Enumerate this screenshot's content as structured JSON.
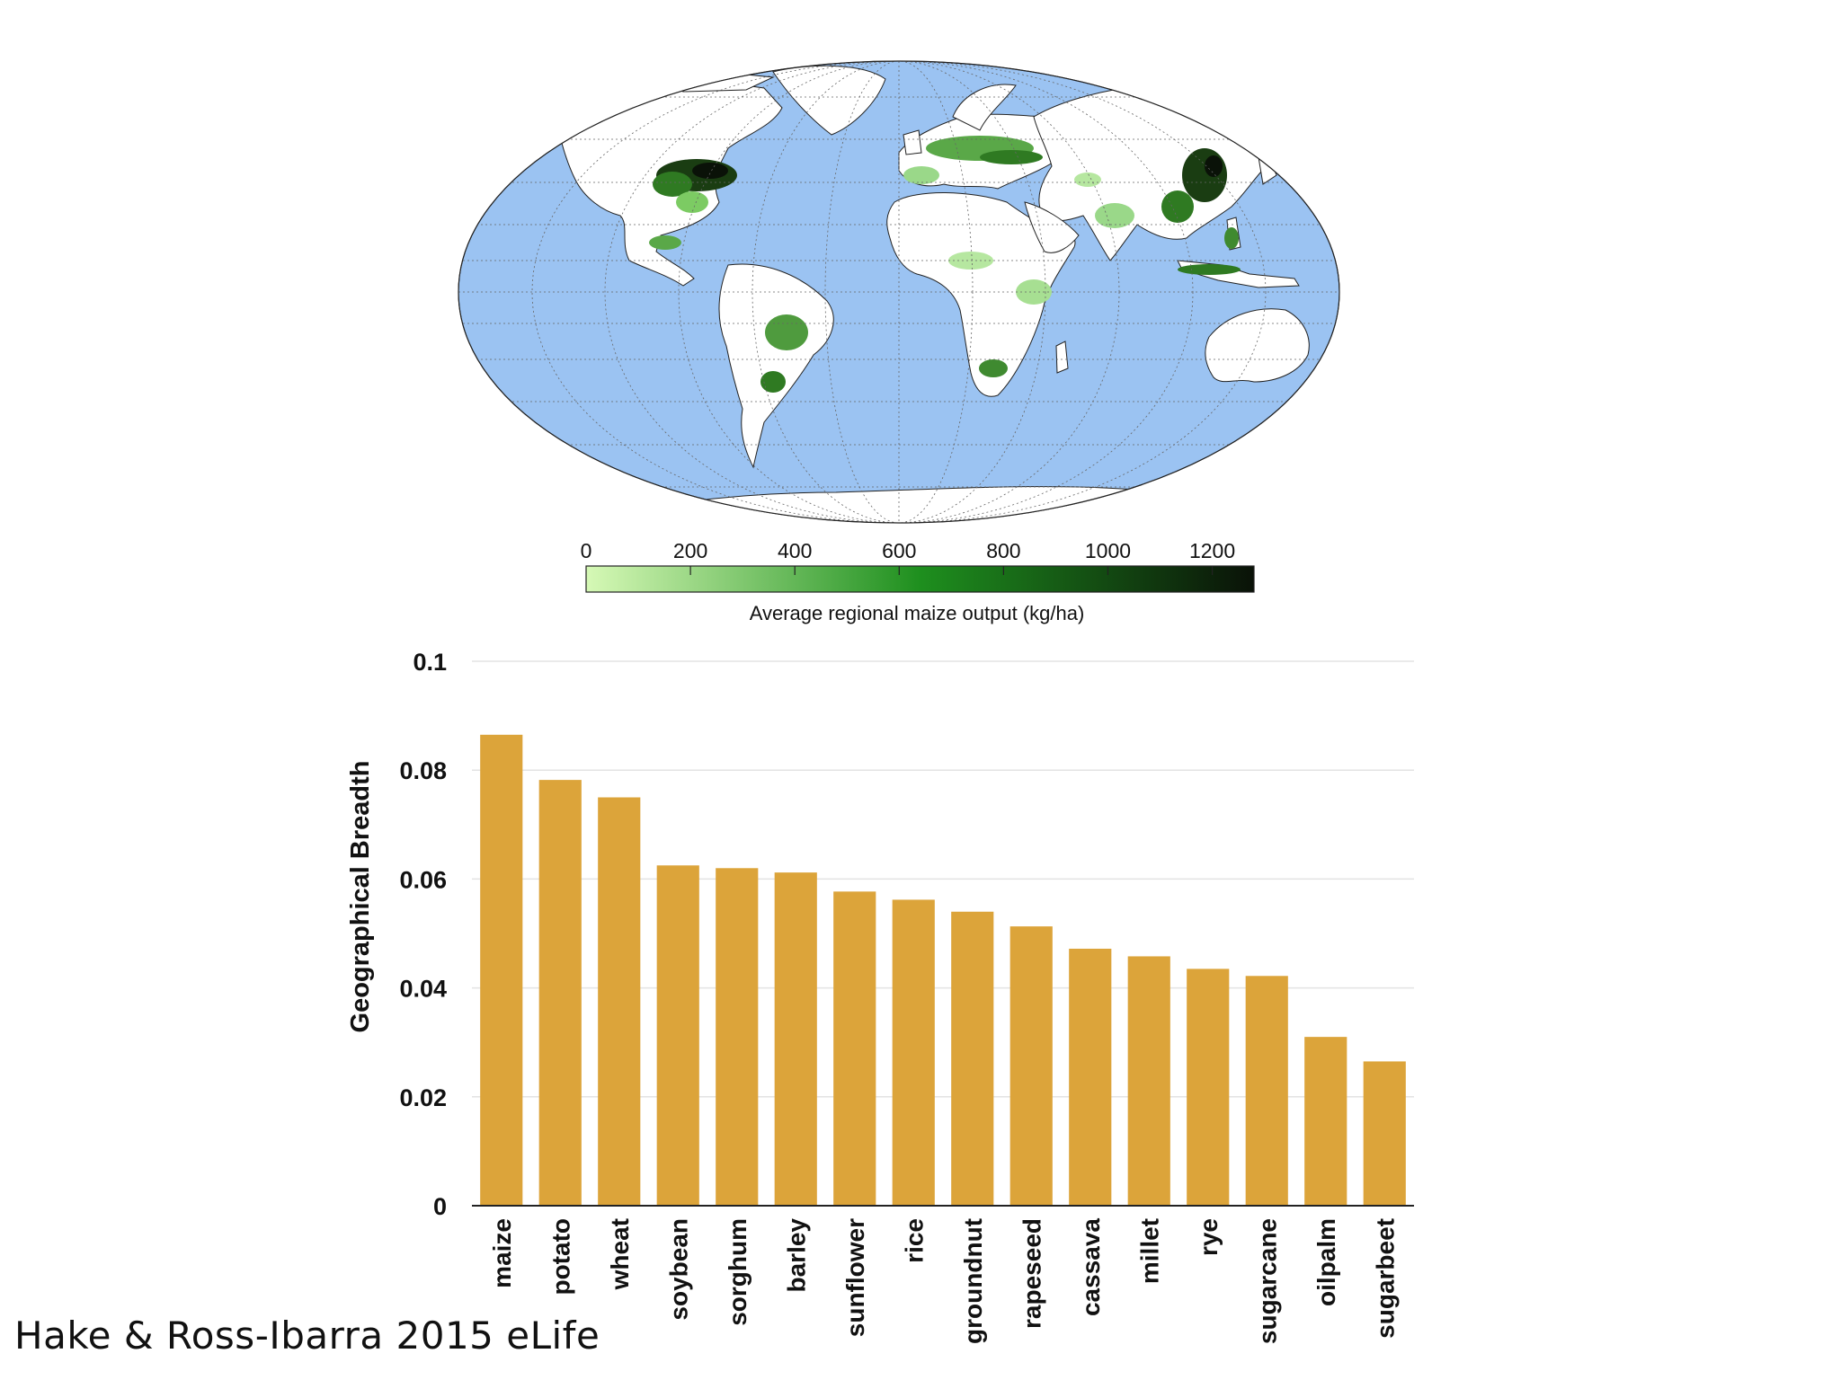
{
  "colors": {
    "ocean": "#9bc3f2",
    "land": "#ffffff",
    "bar": "#dca43a",
    "cbar_low": "#d6f9b6",
    "cbar_mid": "#1e8f1e",
    "cbar_high": "#0a1208"
  },
  "map": {
    "projection": "robinson",
    "colorbar": {
      "ticks": [
        "0",
        "200",
        "400",
        "600",
        "800",
        "1000",
        "1200"
      ],
      "min": 0,
      "max": 1280,
      "label": "Average regional maize output (kg/ha)"
    }
  },
  "chart_data": {
    "type": "bar",
    "title": "",
    "xlabel": "",
    "ylabel": "Geographical Breadth",
    "ylim": [
      0,
      0.1
    ],
    "yticks": [
      "0",
      "0.02",
      "0.04",
      "0.06",
      "0.08",
      "0.1"
    ],
    "grid": true,
    "categories": [
      "maize",
      "potato",
      "wheat",
      "soybean",
      "sorghum",
      "barley",
      "sunflower",
      "rice",
      "groundnut",
      "rapeseed",
      "cassava",
      "millet",
      "rye",
      "sugarcane",
      "oilpalm",
      "sugarbeet"
    ],
    "values": [
      0.0865,
      0.0782,
      0.075,
      0.0625,
      0.062,
      0.0612,
      0.0577,
      0.0562,
      0.054,
      0.0513,
      0.0472,
      0.0458,
      0.0435,
      0.0422,
      0.031,
      0.0265
    ]
  },
  "citation": "Hake & Ross-Ibarra 2015 eLife"
}
